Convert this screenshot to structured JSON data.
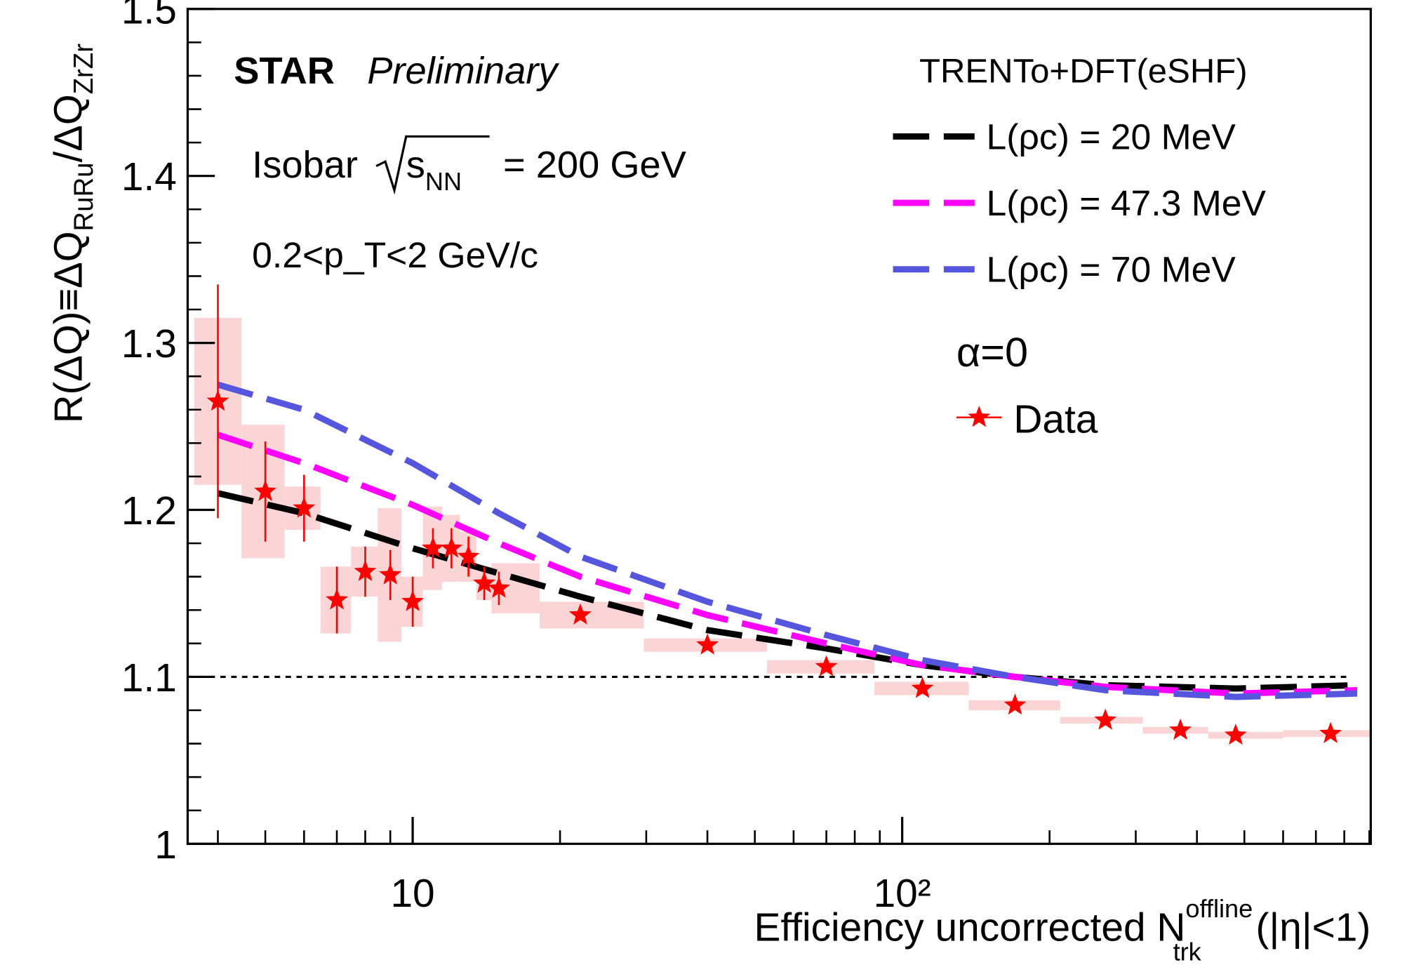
{
  "chart_data": {
    "type": "scatter",
    "log_x": true,
    "y_label": {
      "main": "R(ΔQ)≡ΔQ",
      "sub1": "RuRu",
      "mid": "/ΔQ",
      "sub2": "ZrZr"
    },
    "x_label": {
      "main": "Efficiency uncorrected N",
      "sup": "offline",
      "sub": "trk",
      "tail": " (|η|<1)"
    },
    "annotations": {
      "experiment": "STAR",
      "status": "Preliminary",
      "system": "Isobar",
      "energy_symbol": "s",
      "energy_sub": "NN",
      "energy": "= 200 GeV",
      "cut": "0.2<p_T<2 GeV/c",
      "alpha": "α=0"
    },
    "legend_title": "TRENTo+DFT(eSHF)",
    "xlim": [
      3.47,
      906
    ],
    "ylim": [
      1,
      1.5
    ],
    "xticks": [
      10,
      {
        "value": 100,
        "label": "10²"
      }
    ],
    "xminorticks": [
      4,
      5,
      6,
      7,
      8,
      9,
      20,
      30,
      40,
      50,
      60,
      70,
      80,
      90,
      200,
      300,
      400,
      500,
      600,
      700,
      800,
      900
    ],
    "yticks": [
      1,
      1.1,
      1.2,
      1.3,
      1.4,
      1.5
    ],
    "yminorticks": [
      1.02,
      1.04,
      1.06,
      1.08,
      1.12,
      1.14,
      1.16,
      1.18,
      1.22,
      1.24,
      1.26,
      1.28,
      1.32,
      1.34,
      1.36,
      1.38,
      1.42,
      1.44,
      1.46,
      1.48
    ],
    "ref_line": 1.1,
    "models": [
      {
        "name": "L(ρc) = 20 MeV",
        "color": "#000000",
        "x": [
          4,
          6,
          10,
          15,
          22,
          40,
          70,
          110,
          170,
          260,
          480,
          850
        ],
        "values": [
          1.21,
          1.198,
          1.177,
          1.162,
          1.148,
          1.128,
          1.117,
          1.107,
          1.1,
          1.095,
          1.093,
          1.095
        ]
      },
      {
        "name": "L(ρc) = 47.3 MeV",
        "color": "#ff00ff",
        "x": [
          4,
          6,
          10,
          15,
          22,
          40,
          70,
          110,
          170,
          260,
          480,
          850
        ],
        "values": [
          1.245,
          1.228,
          1.203,
          1.18,
          1.16,
          1.137,
          1.12,
          1.107,
          1.1,
          1.094,
          1.09,
          1.092
        ]
      },
      {
        "name": "L(ρc) = 70 MeV",
        "color": "#5555dd",
        "x": [
          4,
          6,
          10,
          15,
          22,
          40,
          70,
          110,
          170,
          260,
          480,
          850
        ],
        "values": [
          1.275,
          1.26,
          1.228,
          1.198,
          1.172,
          1.145,
          1.125,
          1.11,
          1.1,
          1.092,
          1.088,
          1.09
        ]
      }
    ],
    "series": [
      {
        "name": "Data",
        "color": "#ff0000",
        "sys_color": "#fbd5d5",
        "x": [
          4,
          5,
          6,
          7,
          8,
          9,
          10,
          11,
          12,
          13,
          14,
          15,
          22,
          40,
          70,
          110,
          170,
          260,
          370,
          480,
          750
        ],
        "values": [
          1.265,
          1.211,
          1.201,
          1.146,
          1.163,
          1.161,
          1.145,
          1.177,
          1.177,
          1.172,
          1.156,
          1.153,
          1.137,
          1.119,
          1.106,
          1.093,
          1.083,
          1.074,
          1.068,
          1.065,
          1.066
        ],
        "errors": [
          0.07,
          0.03,
          0.02,
          0.02,
          0.015,
          0.015,
          0.015,
          0.012,
          0.012,
          0.012,
          0.01,
          0.01,
          null,
          null,
          null,
          null,
          null,
          null,
          null,
          null,
          null
        ],
        "sys": [
          0.05,
          0.04,
          0.013,
          0.02,
          0.015,
          0.04,
          0.015,
          0.025,
          0.02,
          0.015,
          0.01,
          0.015,
          0.008,
          0.004,
          0.004,
          0.004,
          0.003,
          0.002,
          0.002,
          0.002,
          0.002
        ]
      }
    ]
  }
}
